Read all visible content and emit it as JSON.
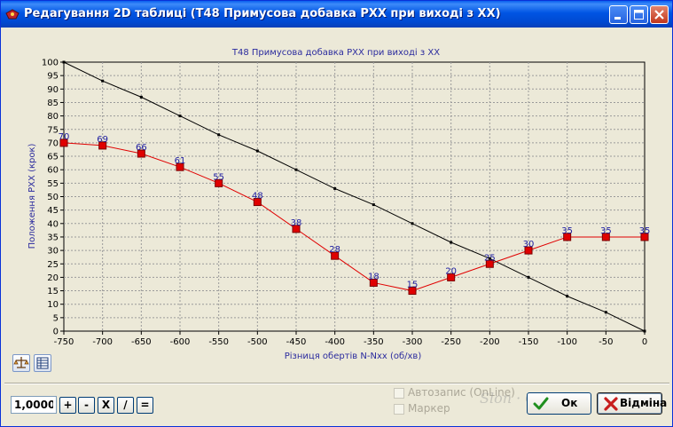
{
  "window": {
    "title": "Редагування 2D таблиці (T48 Примусова добавка РХХ при виході з ХХ)",
    "controls": [
      "minimize-icon",
      "maximize-icon",
      "close-icon"
    ]
  },
  "chart_data": {
    "type": "line",
    "title": "T48 Примусова добавка РХХ при виході з ХХ",
    "xlabel": "Різниця обертів N-Nxx (об/хв)",
    "ylabel": "Положення РХХ (крок)",
    "xlim": [
      -750,
      0
    ],
    "ylim": [
      0,
      100
    ],
    "x_ticks": [
      "-750",
      "-700",
      "-650",
      "-600",
      "-550",
      "-500",
      "-450",
      "-400",
      "-350",
      "-300",
      "-250",
      "-200",
      "-150",
      "-100",
      "-50",
      "0"
    ],
    "y_ticks": [
      "0",
      "5",
      "10",
      "15",
      "20",
      "25",
      "30",
      "35",
      "40",
      "45",
      "50",
      "55",
      "60",
      "65",
      "70",
      "75",
      "80",
      "85",
      "90",
      "95",
      "100"
    ],
    "grid": true,
    "series": [
      {
        "color": "#E00000",
        "x": [
          -750,
          -700,
          -650,
          -600,
          -550,
          -500,
          -450,
          -400,
          -350,
          -300,
          -250,
          -200,
          -150,
          -100,
          -50,
          0
        ],
        "values": [
          70,
          69,
          66,
          61,
          55,
          48,
          38,
          28,
          18,
          15,
          20,
          25,
          30,
          35,
          35,
          35
        ],
        "labels": [
          "70",
          "69",
          "66",
          "61",
          "55",
          "48",
          "38",
          "28",
          "18",
          "15",
          "20",
          "25",
          "30",
          "35",
          "35",
          "35"
        ]
      },
      {
        "color": "#000000",
        "x": [
          -750,
          -700,
          -650,
          -600,
          -550,
          -500,
          -450,
          -400,
          -350,
          -300,
          -250,
          -200,
          -150,
          -100,
          -50,
          0
        ],
        "values": [
          100,
          93,
          87,
          80,
          73,
          67,
          60,
          53,
          47,
          40,
          33,
          27,
          20,
          13,
          7,
          0
        ]
      }
    ]
  },
  "toolbar": {
    "icons": [
      "scale-icon",
      "table-icon"
    ]
  },
  "bottom": {
    "step_value": "1,0000",
    "ops": [
      "+",
      "-",
      "X",
      "/",
      "="
    ],
    "autosave_label": "Автозапис (OnLine)",
    "marker_label": "Маркер",
    "ok_label": "Ок",
    "cancel_label": "Відміна"
  },
  "watermark": "Slon · Orny"
}
